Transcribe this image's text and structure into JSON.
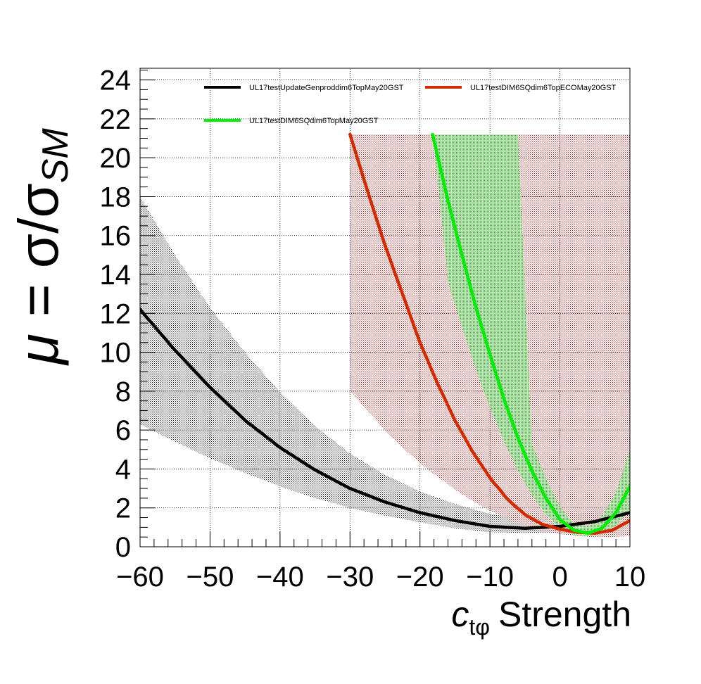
{
  "chart_data": {
    "type": "line",
    "xlabel": {
      "var": "c",
      "sub": "tφ",
      "rest": "Strength"
    },
    "ylabel": {
      "mu": "μ",
      "eq": "= σ/σ",
      "sub": "SM"
    },
    "xlim": [
      -60,
      10
    ],
    "ylim": [
      0,
      24.6
    ],
    "xticks": [
      -60,
      -50,
      -40,
      -30,
      -20,
      -10,
      0,
      10
    ],
    "xtick_labels": [
      "−60",
      "−50",
      "−40",
      "−30",
      "−20",
      "−10",
      "0",
      "10"
    ],
    "yticks": [
      0,
      2,
      4,
      6,
      8,
      10,
      12,
      14,
      16,
      18,
      20,
      22,
      24
    ],
    "ytick_labels": [
      "0",
      "2",
      "4",
      "6",
      "8",
      "10",
      "12",
      "14",
      "16",
      "18",
      "20",
      "22",
      "24"
    ],
    "grid": true,
    "legend_position": "top",
    "band_clip_y": 21.2,
    "series": [
      {
        "name": "UL17testUpdateGenproddim6TopMay20GST",
        "color": "#000000",
        "band_color": "#000000",
        "x": [
          -60,
          -55,
          -50,
          -45,
          -40,
          -35,
          -30,
          -25,
          -20,
          -15,
          -10,
          -5,
          0,
          5,
          10
        ],
        "y": [
          12.2,
          10.1,
          8.2,
          6.5,
          5.1,
          3.95,
          3.0,
          2.3,
          1.75,
          1.35,
          1.05,
          0.95,
          1.05,
          1.3,
          1.75
        ],
        "band_low": [
          6.3,
          5.4,
          4.55,
          3.8,
          3.1,
          2.5,
          2.0,
          1.6,
          1.25,
          0.95,
          0.75,
          0.7,
          0.75,
          0.95,
          1.2
        ],
        "band_high": [
          18.0,
          15.0,
          12.3,
          10.0,
          7.95,
          6.2,
          4.8,
          3.7,
          2.85,
          2.2,
          1.7,
          1.45,
          1.5,
          1.9,
          2.4
        ]
      },
      {
        "name": "UL17testDIM6SQdim6TopECOMay20GST",
        "color": "#d42a00",
        "band_color": "#b00000",
        "x": [
          -30,
          -27.5,
          -25,
          -22.5,
          -20,
          -17.5,
          -15,
          -12.5,
          -10,
          -7.5,
          -5,
          -2.5,
          0,
          2.5,
          5,
          7.5,
          10
        ],
        "y": [
          21.2,
          18.3,
          15.5,
          13.0,
          10.5,
          8.4,
          6.5,
          4.9,
          3.55,
          2.45,
          1.65,
          1.15,
          0.9,
          0.75,
          0.7,
          0.85,
          1.35
        ],
        "band_low": [
          8.0,
          7.0,
          6.0,
          5.1,
          4.3,
          3.6,
          2.95,
          2.35,
          1.85,
          1.45,
          1.1,
          0.85,
          0.65,
          0.55,
          0.5,
          0.5,
          0.55
        ],
        "band_high": [
          21.2,
          21.2,
          21.2,
          21.2,
          21.2,
          21.2,
          21.2,
          21.2,
          21.2,
          21.2,
          21.2,
          21.2,
          21.2,
          21.2,
          21.2,
          21.2,
          21.2
        ]
      },
      {
        "name": "UL17testDIM6SQdim6TopMay20GST",
        "color": "#00ee00",
        "band_color": "#00aa00",
        "x": [
          -18.2,
          -16,
          -14,
          -12,
          -10,
          -8,
          -6,
          -4,
          -2,
          0,
          2,
          4,
          6,
          8,
          10
        ],
        "y": [
          21.2,
          17.8,
          15.0,
          12.3,
          9.9,
          7.6,
          5.6,
          3.9,
          2.5,
          1.4,
          0.85,
          0.7,
          0.95,
          1.75,
          3.1
        ],
        "band_low": [
          21.2,
          13.6,
          11.3,
          9.1,
          7.15,
          5.4,
          3.9,
          2.65,
          1.65,
          0.95,
          0.6,
          0.55,
          0.7,
          1.1,
          1.9
        ],
        "band_high": [
          21.2,
          21.2,
          21.2,
          21.2,
          21.2,
          21.2,
          21.2,
          5.3,
          3.5,
          2.05,
          1.2,
          1.05,
          1.55,
          2.8,
          5.0
        ]
      }
    ]
  }
}
